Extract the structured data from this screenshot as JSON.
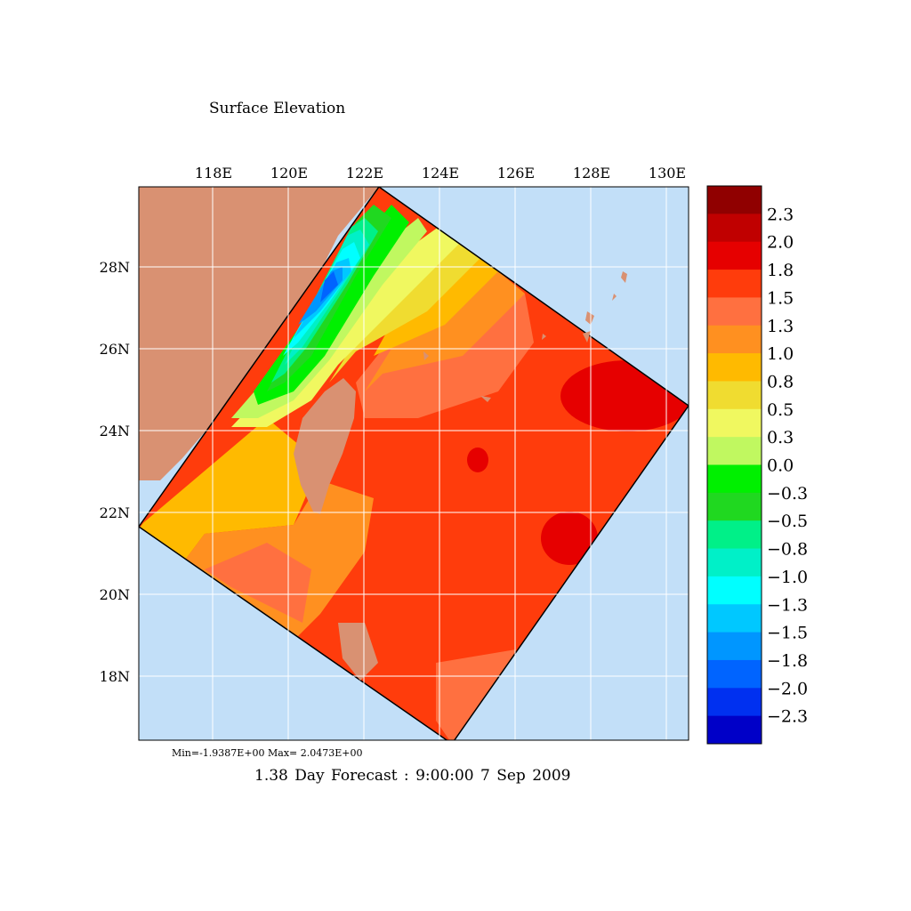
{
  "title": "Surface Elevation",
  "lon_ticks": [
    "118E",
    "120E",
    "122E",
    "124E",
    "126E",
    "128E",
    "130E"
  ],
  "lat_ticks": [
    "28N",
    "26N",
    "24N",
    "22N",
    "20N",
    "18N"
  ],
  "minmax": "Min=-1.9387E+00  Max= 2.0473E+00",
  "forecast": "1.38 Day Forecast :  9:00:00   7 Sep 2009",
  "colorbar": {
    "labels": [
      "2.3",
      "2.0",
      "1.8",
      "1.5",
      "1.3",
      "1.0",
      "0.8",
      "0.5",
      "0.3",
      "0.0",
      "−0.3",
      "−0.5",
      "−0.8",
      "−1.0",
      "−1.3",
      "−1.5",
      "−1.8",
      "−2.0",
      "−2.3"
    ],
    "colors": [
      "#900000",
      "#c00000",
      "#e60000",
      "#ff3c0c",
      "#ff7040",
      "#ff9020",
      "#ffba00",
      "#f0dc30",
      "#f0f860",
      "#c0f860",
      "#00f000",
      "#20d820",
      "#00f088",
      "#00f0c8",
      "#00ffff",
      "#00c8ff",
      "#0096ff",
      "#0064ff",
      "#0030f0",
      "#0000c8"
    ]
  },
  "colors": {
    "land": "#d99172",
    "ocean": "#c2dff8",
    "grid": "#ffffff"
  }
}
